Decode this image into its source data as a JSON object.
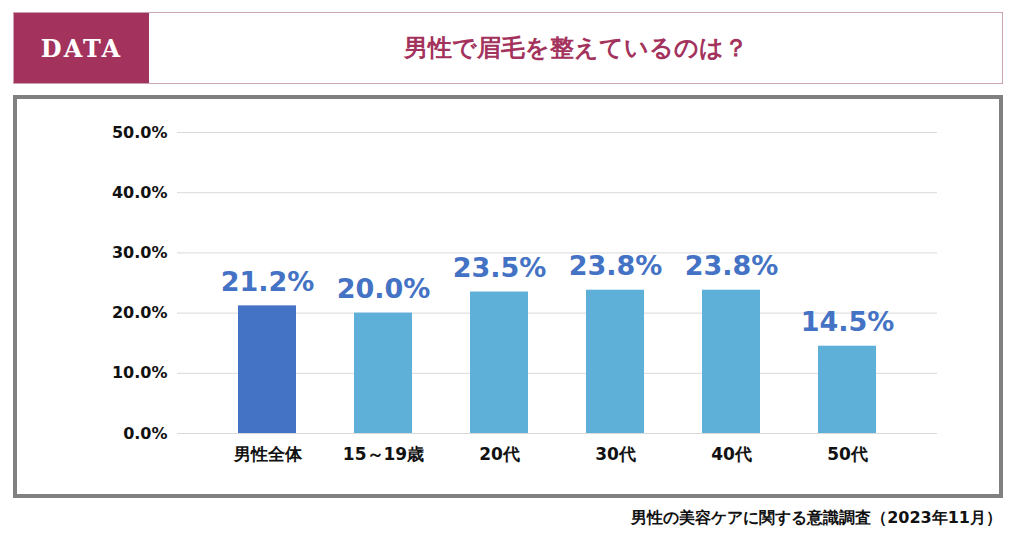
{
  "chart_data": {
    "type": "bar",
    "badge": "DATA",
    "title": "男性で眉毛を整えているのは？",
    "caption": "男性の美容ケアに関する意識調査（2023年11月）",
    "categories": [
      "男性全体",
      "15～19歳",
      "20代",
      "30代",
      "40代",
      "50代"
    ],
    "values": [
      21.2,
      20.0,
      23.5,
      23.8,
      23.8,
      14.5
    ],
    "value_labels": [
      "21.2%",
      "20.0%",
      "23.5%",
      "23.8%",
      "23.8%",
      "14.5%"
    ],
    "colors": [
      "#4472c4",
      "#5eb0d8",
      "#5eb0d8",
      "#5eb0d8",
      "#5eb0d8",
      "#5eb0d8"
    ],
    "ylim": [
      0,
      50
    ],
    "yticks": [
      {
        "value": 0,
        "label": "0.0%"
      },
      {
        "value": 10,
        "label": "10.0%"
      },
      {
        "value": 20,
        "label": "20.0%"
      },
      {
        "value": 30,
        "label": "30.0%"
      },
      {
        "value": 40,
        "label": "40.0%"
      },
      {
        "value": 50,
        "label": "50.0%"
      }
    ],
    "grid": true,
    "data_labels": true
  }
}
